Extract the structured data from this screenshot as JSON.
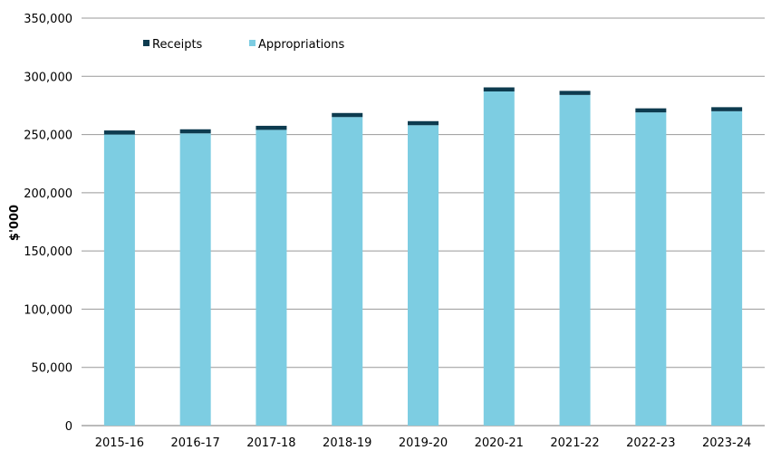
{
  "chart_data": {
    "type": "bar",
    "stacked": true,
    "categories": [
      "2015-16",
      "2016-17",
      "2017-18",
      "2018-19",
      "2019-20",
      "2020-21",
      "2021-22",
      "2022-23",
      "2023-24"
    ],
    "series": [
      {
        "name": "Appropriations",
        "color": "#7dcde2",
        "values": [
          250000,
          251000,
          254000,
          265000,
          258000,
          287000,
          284000,
          269000,
          270000
        ]
      },
      {
        "name": "Receipts",
        "color": "#0d3b4f",
        "values": [
          3500,
          3500,
          3500,
          3500,
          3500,
          3500,
          3500,
          3500,
          3500
        ]
      }
    ],
    "yticks": [
      "0",
      "50,000",
      "100,000",
      "150,000",
      "200,000",
      "250,000",
      "300,000",
      "350,000"
    ],
    "ylabel": "$'000",
    "xlabel": "",
    "ylim": [
      0,
      350000
    ],
    "grid": true,
    "legend_position": "top-left"
  }
}
